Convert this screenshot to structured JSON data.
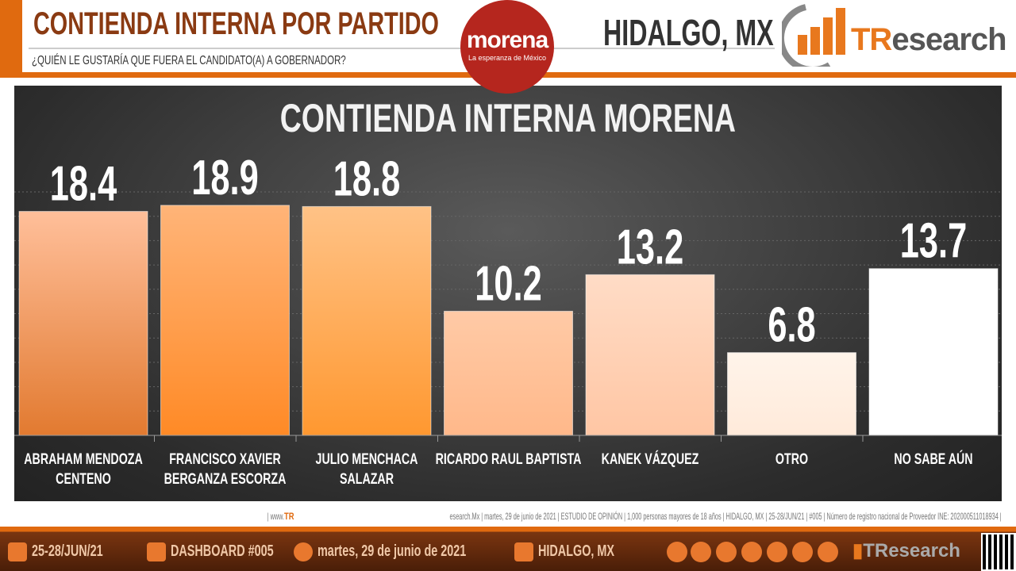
{
  "header": {
    "title": "CONTIENDA INTERNA POR PARTIDO",
    "subtitle": "¿QUIÉN LE GUSTARÍA QUE FUERA EL CANDIDATO(A) A GOBERNADOR?",
    "region": "HIDALGO, MX",
    "party_logo": "morena",
    "party_slogan": "La esperanza de México",
    "brand": "TResearch"
  },
  "chart_data": {
    "type": "bar",
    "title": "CONTIENDA INTERNA MORENA",
    "categories": [
      "ABRAHAM MENDOZA CENTENO",
      "FRANCISCO XAVIER BERGANZA ESCORZA",
      "JULIO MENCHACA SALAZAR",
      "RICARDO RAUL BAPTISTA",
      "KANEK VÁZQUEZ",
      "OTRO",
      "NO SABE AÚN"
    ],
    "category_lines": [
      [
        "ABRAHAM MENDOZA",
        "CENTENO"
      ],
      [
        "FRANCISCO XAVIER",
        "BERGANZA ESCORZA"
      ],
      [
        "JULIO MENCHACA",
        "SALAZAR"
      ],
      [
        "RICARDO RAUL BAPTISTA"
      ],
      [
        "KANEK VÁZQUEZ"
      ],
      [
        "OTRO"
      ],
      [
        "NO SABE AÚN"
      ]
    ],
    "values": [
      18.4,
      18.9,
      18.8,
      10.2,
      13.2,
      6.8,
      13.7
    ],
    "value_labels": [
      "18.4",
      "18.9",
      "18.8",
      "10.2",
      "13.2",
      "6.8",
      "13.7"
    ],
    "colors": [
      [
        "#ffbf9a",
        "#e27a30"
      ],
      [
        "#ffb478",
        "#ff8a26"
      ],
      [
        "#ffc286",
        "#ff9830"
      ],
      [
        "#ffcaa6",
        "#ffb88a"
      ],
      [
        "#ffdcc6",
        "#ffc6a4"
      ],
      [
        "#fff4ea",
        "#ffeada"
      ],
      [
        "#ffffff",
        "#ffffff"
      ]
    ],
    "ylim": [
      0,
      20
    ],
    "grid": true
  },
  "footer": {
    "note_prefix": "| www.",
    "note_brand": "TR",
    "note_rest": "esearch.Mx | martes, 29 de junio de 2021 | ESTUDIO DE OPINIÓN | 1,000 personas mayores de 18 años | HIDALGO, MX | 25-28/JUN/21 | #005 | Número de registro nacional de Proveedor INE: 202000511018934 |",
    "dates": "25-28/JUN/21",
    "dashboard": "DASHBOARD #005",
    "date": "martes, 29 de junio de 2021",
    "location": "HIDALGO, MX",
    "brand": "TResearch"
  }
}
